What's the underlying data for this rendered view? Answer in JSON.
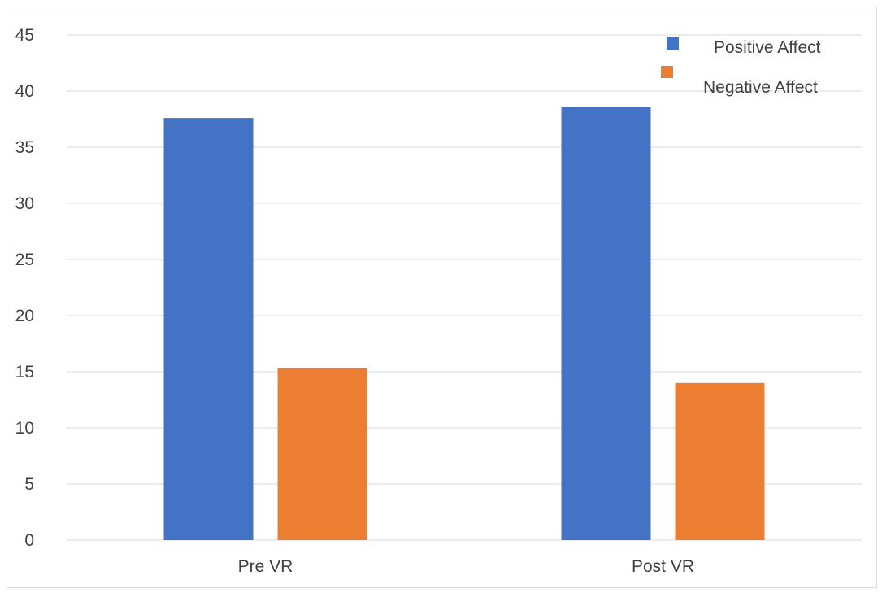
{
  "chart_data": {
    "type": "bar",
    "title": "",
    "xlabel": "",
    "ylabel": "",
    "categories": [
      "Pre VR",
      "Post VR"
    ],
    "series": [
      {
        "name": "Positive Affect",
        "values": [
          37.6,
          38.6
        ],
        "color": "#4472C4"
      },
      {
        "name": "Negative Affect",
        "values": [
          15.3,
          14.0
        ],
        "color": "#ED7D31"
      }
    ],
    "ylim": [
      0,
      45
    ],
    "yticks": [
      0,
      5,
      10,
      15,
      20,
      25,
      30,
      35,
      40,
      45
    ],
    "grid": true,
    "gridColor": "#d9d9d9",
    "legend": "top-right"
  }
}
